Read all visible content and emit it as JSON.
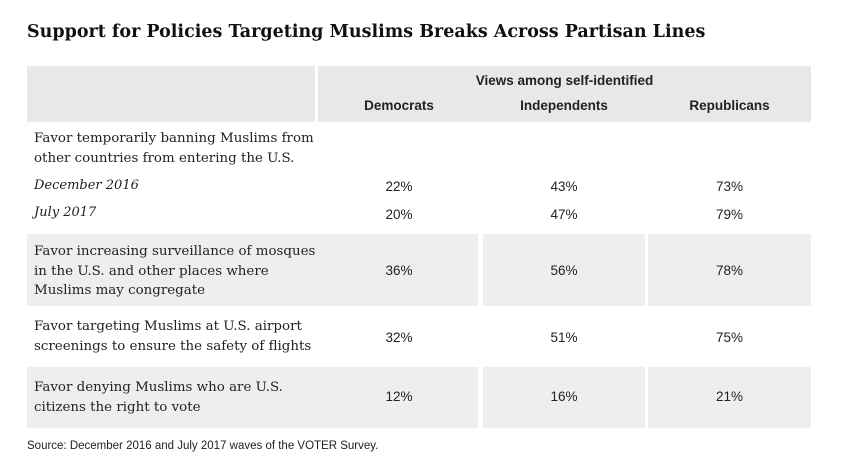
{
  "chart_data": {
    "type": "table",
    "title": "Support for Policies Targeting Muslims Breaks Across Partisan Lines",
    "header_group": "Views among self-identified",
    "columns": [
      "Democrats",
      "Independents",
      "Republicans"
    ],
    "rows": [
      {
        "label": "Favor temporarily banning Muslims from other countries from entering the U.S.",
        "label_lines": [
          "Favor temporarily banning Muslims from",
          "other countries from entering the U.S."
        ],
        "subrows": [
          {
            "label": "December 2016",
            "values": [
              "22%",
              "43%",
              "73%"
            ]
          },
          {
            "label": "July 2017",
            "values": [
              "20%",
              "47%",
              "79%"
            ]
          }
        ]
      },
      {
        "label": "Favor increasing surveillance of mosques in the U.S. and other places where Muslims may congregate",
        "label_lines": [
          "Favor increasing surveillance of mosques",
          "in the U.S. and other places where",
          "Muslims may congregate"
        ],
        "values": [
          "36%",
          "56%",
          "78%"
        ]
      },
      {
        "label": "Favor targeting Muslims at U.S. airport screenings to ensure the safety of flights",
        "label_lines": [
          "Favor targeting Muslims at U.S. airport",
          "screenings to ensure the safety of flights"
        ],
        "values": [
          "32%",
          "51%",
          "75%"
        ]
      },
      {
        "label": "Favor denying Muslims who are U.S. citizens the right to vote",
        "label_lines": [
          "Favor denying Muslims who are U.S.",
          "citizens the right to vote"
        ],
        "values": [
          "12%",
          "16%",
          "21%"
        ]
      }
    ],
    "source": "Source: December 2016 and July 2017 waves of the VOTER Survey."
  }
}
